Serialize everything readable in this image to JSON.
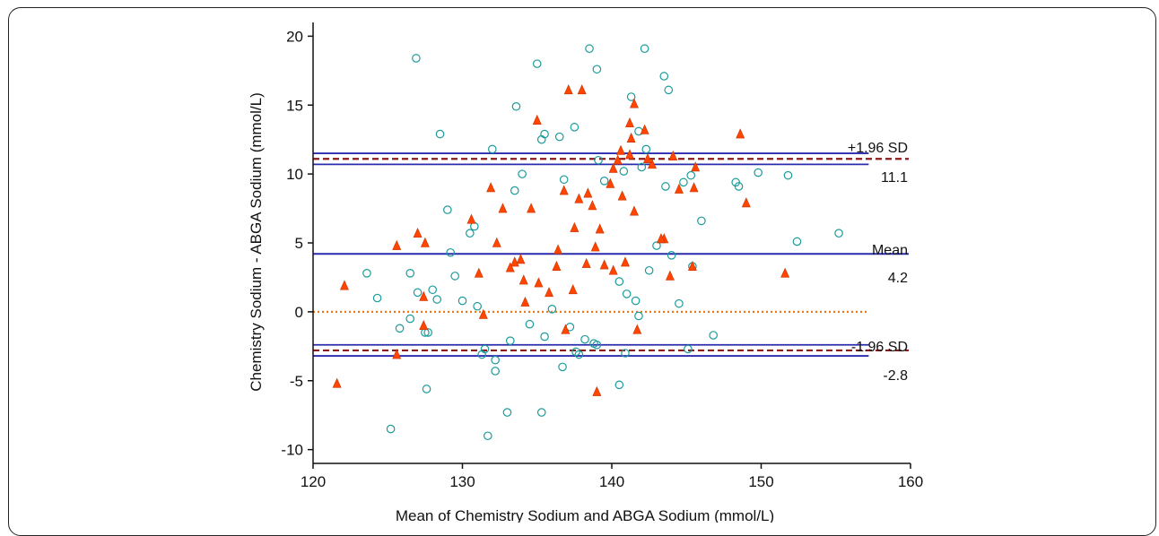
{
  "chart_data": {
    "type": "scatter",
    "title": "",
    "xlabel": "Mean of Chemistry Sodium and ABGA Sodium (mmol/L)",
    "ylabel": "Chemistry Sodium - ABGA Sodium (mmol/L)",
    "xlim": [
      120,
      160
    ],
    "ylim": [
      -11,
      21
    ],
    "xticks": [
      120,
      130,
      140,
      150,
      160
    ],
    "yticks": [
      -10,
      -5,
      0,
      5,
      10,
      15,
      20
    ],
    "grid": false,
    "legend": "none",
    "reference_lines": {
      "mean": {
        "label": "Mean",
        "value_label": "4.2",
        "value": 4.2,
        "color": "#2b2bb0"
      },
      "upper": {
        "label": "+1.96 SD",
        "value_label": "11.1",
        "value": 11.1,
        "ci": [
          10.7,
          11.5
        ],
        "color": "#2b2bb0",
        "dashed_color": "#8b1a1a"
      },
      "lower": {
        "label": "-1.96 SD",
        "value_label": "-2.8",
        "value": -2.8,
        "ci": [
          -3.2,
          -2.4
        ],
        "color": "#2b2bb0",
        "dashed_color": "#8b1a1a"
      },
      "zero": {
        "value": 0,
        "color": "#f07818"
      }
    },
    "series": [
      {
        "marker": "circle",
        "color": "#1a9b9b",
        "x": [
          126.9,
          128.5,
          132.0,
          135.0,
          138.5,
          139.0,
          142.2,
          143.5,
          143.8,
          135.3,
          133.6,
          137.5,
          141.3,
          141.8,
          142.3,
          142.0,
          139.1,
          136.5,
          135.5,
          132.2,
          127.6,
          125.2,
          123.6,
          124.3,
          127.7,
          128.3,
          131.7,
          133.0,
          135.3,
          136.7,
          140.5,
          140.9,
          131.3,
          131.5,
          132.2,
          146.8,
          148.3,
          148.5,
          149.8,
          151.8,
          152.4,
          155.2,
          145.4,
          145.1,
          144.0,
          143.0,
          139.0,
          137.6,
          137.8,
          146.0,
          144.8,
          145.3,
          140.5,
          141.0,
          141.6,
          142.5,
          129.5,
          130.0,
          131.0,
          129.0,
          127.5,
          126.5,
          125.8,
          128.0,
          133.2,
          134.5,
          136.0,
          137.2,
          138.8,
          141.8,
          144.5,
          130.5,
          130.8,
          133.5,
          139.5,
          143.6,
          126.5,
          127.0,
          129.2,
          134.0,
          136.8,
          140.8,
          135.5,
          138.2
        ],
        "y": [
          18.4,
          12.9,
          11.8,
          18.0,
          19.1,
          17.6,
          19.1,
          17.1,
          16.1,
          12.5,
          14.9,
          13.4,
          15.6,
          13.1,
          11.8,
          10.5,
          11.0,
          12.7,
          12.9,
          -4.3,
          -5.6,
          -8.5,
          2.8,
          1.0,
          -1.5,
          0.9,
          -9.0,
          -7.3,
          -7.3,
          -4.0,
          -5.3,
          -3.0,
          -3.1,
          -2.7,
          -3.5,
          -1.7,
          9.4,
          9.1,
          10.1,
          9.9,
          5.1,
          5.7,
          3.3,
          -2.7,
          4.1,
          4.8,
          -2.4,
          -2.9,
          -3.1,
          6.6,
          9.4,
          9.9,
          2.2,
          1.3,
          0.8,
          3.0,
          2.6,
          0.8,
          0.4,
          7.4,
          -1.5,
          -0.5,
          -1.2,
          1.6,
          -2.1,
          -0.9,
          0.2,
          -1.1,
          -2.3,
          -0.3,
          0.6,
          5.7,
          6.2,
          8.8,
          9.5,
          9.1,
          2.8,
          1.4,
          4.3,
          10.0,
          9.6,
          10.2,
          -1.8,
          -2.0
        ]
      },
      {
        "marker": "triangle",
        "color": "#ff4500",
        "x": [
          121.6,
          122.1,
          125.6,
          125.6,
          127.0,
          127.4,
          127.5,
          127.4,
          130.6,
          131.4,
          131.9,
          132.7,
          133.5,
          134.2,
          135.0,
          137.1,
          138.0,
          138.4,
          139.0,
          140.1,
          140.7,
          141.5,
          141.2,
          142.2,
          142.7,
          141.3,
          141.2,
          140.4,
          140.6,
          144.1,
          144.5,
          145.5,
          145.6,
          148.6,
          149.0,
          151.6,
          145.4,
          143.5,
          143.3,
          143.9,
          140.9,
          141.7,
          139.5,
          138.3,
          137.5,
          136.9,
          136.3,
          135.8,
          134.6,
          133.9,
          133.2,
          132.3,
          131.1,
          137.8,
          139.2,
          138.7,
          135.1,
          136.4,
          137.4,
          141.5,
          139.9,
          142.4,
          140.1,
          134.1,
          136.8,
          138.9
        ],
        "y": [
          -5.2,
          1.9,
          4.8,
          -3.1,
          5.7,
          1.1,
          5.0,
          -1.0,
          6.7,
          -0.2,
          9.0,
          7.5,
          3.6,
          0.7,
          13.9,
          16.1,
          16.1,
          8.6,
          -5.8,
          10.4,
          8.4,
          15.1,
          13.7,
          13.2,
          10.7,
          12.6,
          11.4,
          11.0,
          11.7,
          11.3,
          8.9,
          9.0,
          10.5,
          12.9,
          7.9,
          2.8,
          3.3,
          5.3,
          5.3,
          2.6,
          3.6,
          -1.3,
          3.4,
          3.5,
          6.1,
          -1.3,
          3.3,
          1.4,
          7.5,
          3.8,
          3.2,
          5.0,
          2.8,
          8.2,
          6.0,
          7.7,
          2.1,
          4.5,
          1.6,
          7.3,
          9.3,
          11.1,
          3.0,
          2.3,
          8.8,
          4.7
        ]
      }
    ]
  }
}
